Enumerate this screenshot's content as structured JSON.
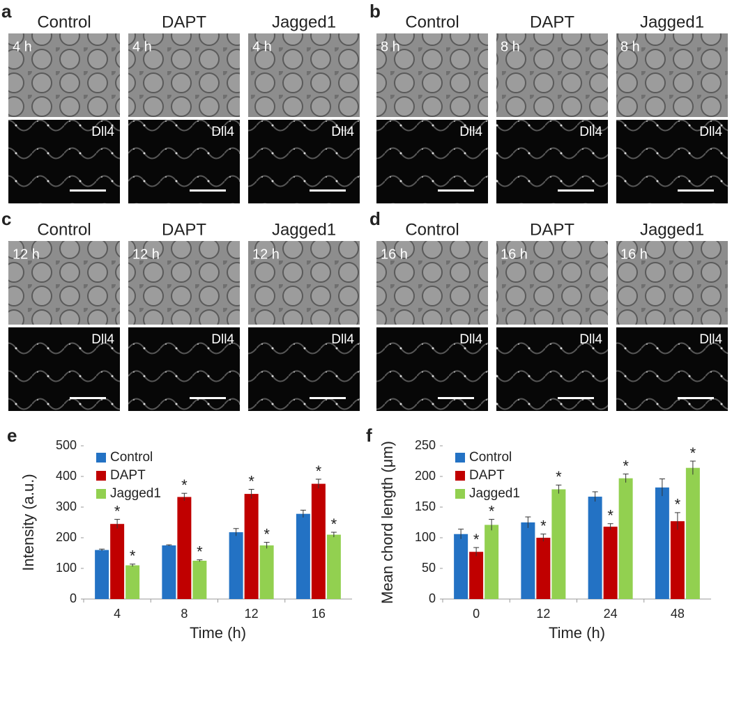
{
  "panels": [
    {
      "letter": "a",
      "time": "4 h",
      "stain": "Dll4",
      "columns": [
        "Control",
        "DAPT",
        "Jagged1"
      ]
    },
    {
      "letter": "b",
      "time": "8 h",
      "stain": "Dll4",
      "columns": [
        "Control",
        "DAPT",
        "Jagged1"
      ]
    },
    {
      "letter": "c",
      "time": "12 h",
      "stain": "Dll4",
      "columns": [
        "Control",
        "DAPT",
        "Jagged1"
      ]
    },
    {
      "letter": "d",
      "time": "16 h",
      "stain": "Dll4",
      "columns": [
        "Control",
        "DAPT",
        "Jagged1"
      ]
    }
  ],
  "chart_data": [
    {
      "type": "bar",
      "letter": "e",
      "x_label": "Time (h)",
      "y_label": "Intensity (a.u.)",
      "categories": [
        "4",
        "8",
        "12",
        "16"
      ],
      "ylim": [
        0,
        500
      ],
      "yticks": [
        0,
        100,
        200,
        300,
        400,
        500
      ],
      "grid": false,
      "series": [
        {
          "name": "Control",
          "color": "#2372c4",
          "values": [
            160,
            175,
            218,
            278
          ],
          "errors": [
            3,
            2,
            12,
            12
          ]
        },
        {
          "name": "DAPT",
          "color": "#c00000",
          "values": [
            245,
            333,
            343,
            376
          ],
          "errors": [
            15,
            12,
            15,
            15
          ],
          "significance": [
            "*",
            "*",
            "*",
            "*"
          ]
        },
        {
          "name": "Jagged1",
          "color": "#92d050",
          "values": [
            110,
            125,
            175,
            210
          ],
          "errors": [
            4,
            3,
            10,
            8
          ],
          "significance": [
            "*",
            "*",
            "*",
            "*"
          ]
        }
      ]
    },
    {
      "type": "bar",
      "letter": "f",
      "x_label": "Time (h)",
      "y_label": "Mean chord length (μm)",
      "categories": [
        "0",
        "12",
        "24",
        "48"
      ],
      "ylim": [
        0,
        250
      ],
      "yticks": [
        0,
        50,
        100,
        150,
        200,
        250
      ],
      "grid": false,
      "series": [
        {
          "name": "Control",
          "color": "#2372c4",
          "values": [
            106,
            125,
            167,
            182
          ],
          "errors": [
            8,
            9,
            8,
            14
          ]
        },
        {
          "name": "DAPT",
          "color": "#c00000",
          "values": [
            77,
            100,
            118,
            127
          ],
          "errors": [
            7,
            6,
            5,
            14
          ],
          "significance": [
            "*",
            "*",
            "*",
            "*"
          ]
        },
        {
          "name": "Jagged1",
          "color": "#92d050",
          "values": [
            121,
            179,
            197,
            214
          ],
          "errors": [
            9,
            7,
            7,
            11
          ],
          "significance": [
            "*",
            "*",
            "*",
            "*"
          ]
        }
      ]
    }
  ]
}
